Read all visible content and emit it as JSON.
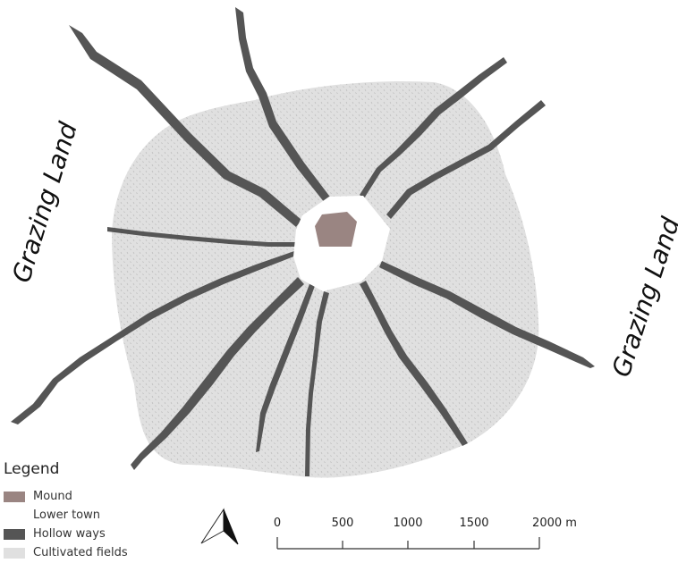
{
  "labels": {
    "grazing_left": "Grazing Land",
    "grazing_right": "Grazing Land"
  },
  "legend": {
    "title": "Legend",
    "items": [
      {
        "label": "Mound",
        "color": "#9a8582"
      },
      {
        "label": "Lower town",
        "color": "#ffffff"
      },
      {
        "label": "Hollow ways",
        "color": "#555555"
      },
      {
        "label": "Cultivated fields",
        "color": "#e0e0e0"
      }
    ]
  },
  "scale_bar": {
    "ticks": [
      "0",
      "500",
      "1000",
      "1500",
      "2000 m"
    ]
  },
  "colors": {
    "fields": "#e0e0e0",
    "hollow_way": "#555555",
    "mound": "#9a8582",
    "lower_town": "#ffffff"
  },
  "north_arrow": "north-arrow-icon"
}
